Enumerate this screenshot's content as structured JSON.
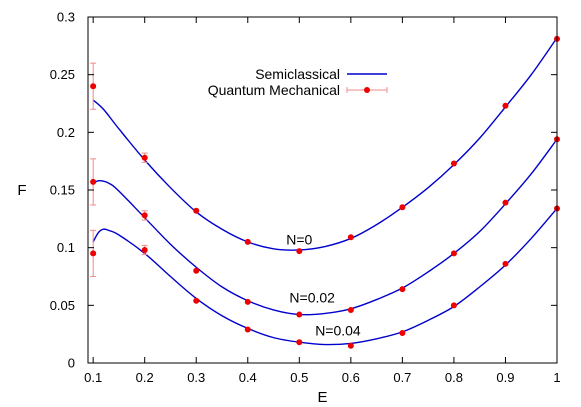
{
  "chart_data": {
    "type": "line",
    "title": "",
    "xlabel": "E",
    "ylabel": "F",
    "xlim": [
      0.09,
      1.0
    ],
    "ylim": [
      0,
      0.3
    ],
    "xticks": [
      "0.1",
      "0.2",
      "0.3",
      "0.4",
      "0.5",
      "0.6",
      "0.7",
      "0.8",
      "0.9",
      "1"
    ],
    "xtick_values": [
      0.1,
      0.2,
      0.3,
      0.4,
      0.5,
      0.6,
      0.7,
      0.8,
      0.9,
      1.0
    ],
    "yticks": [
      "0",
      "0.05",
      "0.1",
      "0.15",
      "0.2",
      "0.25",
      "0.3"
    ],
    "ytick_values": [
      0,
      0.05,
      0.1,
      0.15,
      0.2,
      0.25,
      0.3
    ],
    "grid": false,
    "legend_position": "top-center",
    "legend": [
      {
        "label": "Semiclassical",
        "kind": "line"
      },
      {
        "label": "Quantum Mechanical",
        "kind": "errorbar-points"
      }
    ],
    "colors": {
      "semiclassical": "#0000cc",
      "quantum": "#ee0000",
      "errorbar": "#f08a8a"
    },
    "semiclassical": [
      {
        "label": "N=0",
        "label_at": [
          0.5,
          0.107
        ],
        "x": [
          0.1,
          0.12,
          0.15,
          0.2,
          0.25,
          0.3,
          0.35,
          0.4,
          0.45,
          0.5,
          0.55,
          0.6,
          0.65,
          0.7,
          0.75,
          0.8,
          0.85,
          0.9,
          0.95,
          1.0
        ],
        "y": [
          0.228,
          0.22,
          0.203,
          0.176,
          0.152,
          0.131,
          0.116,
          0.105,
          0.099,
          0.098,
          0.101,
          0.108,
          0.12,
          0.135,
          0.152,
          0.172,
          0.195,
          0.222,
          0.25,
          0.282
        ]
      },
      {
        "label": "N=0.02",
        "label_at": [
          0.525,
          0.057
        ],
        "x": [
          0.1,
          0.11,
          0.13,
          0.15,
          0.2,
          0.25,
          0.3,
          0.35,
          0.4,
          0.45,
          0.5,
          0.55,
          0.6,
          0.65,
          0.7,
          0.75,
          0.8,
          0.85,
          0.9,
          0.95,
          1.0
        ],
        "y": [
          0.155,
          0.158,
          0.156,
          0.149,
          0.126,
          0.103,
          0.083,
          0.066,
          0.054,
          0.046,
          0.042,
          0.043,
          0.047,
          0.055,
          0.065,
          0.079,
          0.095,
          0.114,
          0.138,
          0.164,
          0.194
        ]
      },
      {
        "label": "N=0.04",
        "label_at": [
          0.575,
          0.028
        ],
        "x": [
          0.1,
          0.11,
          0.12,
          0.13,
          0.15,
          0.2,
          0.25,
          0.3,
          0.35,
          0.4,
          0.45,
          0.5,
          0.55,
          0.6,
          0.65,
          0.7,
          0.75,
          0.8,
          0.85,
          0.9,
          0.95,
          1.0
        ],
        "y": [
          0.105,
          0.113,
          0.116,
          0.115,
          0.111,
          0.095,
          0.075,
          0.056,
          0.041,
          0.03,
          0.022,
          0.018,
          0.016,
          0.017,
          0.021,
          0.027,
          0.037,
          0.049,
          0.066,
          0.085,
          0.108,
          0.134
        ]
      }
    ],
    "quantum": [
      {
        "name": "N=0",
        "x": [
          0.1,
          0.2,
          0.3,
          0.4,
          0.5,
          0.6,
          0.7,
          0.8,
          0.9,
          1.0
        ],
        "y": [
          0.24,
          0.178,
          0.132,
          0.105,
          0.097,
          0.109,
          0.135,
          0.173,
          0.223,
          0.281
        ],
        "err": [
          0.02,
          0.004,
          0,
          0,
          0,
          0,
          0,
          0,
          0,
          0
        ]
      },
      {
        "name": "N=0.02",
        "x": [
          0.1,
          0.2,
          0.3,
          0.4,
          0.5,
          0.6,
          0.7,
          0.8,
          0.9,
          1.0
        ],
        "y": [
          0.157,
          0.128,
          0.08,
          0.053,
          0.042,
          0.046,
          0.064,
          0.095,
          0.139,
          0.194
        ],
        "err": [
          0.02,
          0.004,
          0,
          0,
          0,
          0,
          0,
          0,
          0,
          0
        ]
      },
      {
        "name": "N=0.04",
        "x": [
          0.1,
          0.2,
          0.3,
          0.4,
          0.5,
          0.6,
          0.7,
          0.8,
          0.9,
          1.0
        ],
        "y": [
          0.095,
          0.098,
          0.054,
          0.029,
          0.018,
          0.015,
          0.026,
          0.05,
          0.086,
          0.134
        ],
        "err": [
          0.02,
          0.004,
          0,
          0,
          0,
          0,
          0,
          0,
          0,
          0
        ]
      }
    ]
  }
}
